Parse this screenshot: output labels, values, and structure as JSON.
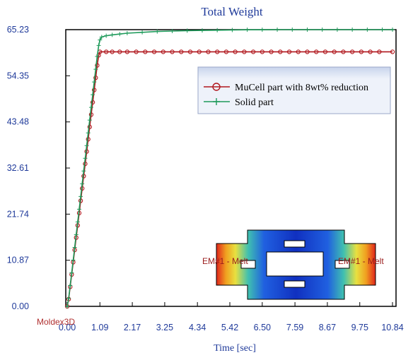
{
  "chart_data": {
    "type": "line",
    "title": "Total Weight",
    "xlabel": "Time [sec]",
    "ylabel": "",
    "x_ticks": [
      "0.00",
      "1.09",
      "2.17",
      "3.25",
      "4.34",
      "5.42",
      "6.50",
      "7.59",
      "8.67",
      "9.75",
      "10.84"
    ],
    "y_ticks": [
      "0.00",
      "10.87",
      "21.74",
      "32.61",
      "43.48",
      "54.35",
      "65.23"
    ],
    "xlim": [
      0,
      10.84
    ],
    "ylim": [
      0,
      65.23
    ],
    "legend_position": "upper-right",
    "series": [
      {
        "name": "MuCell part with 8wt% reduction",
        "color": "#b0161c",
        "marker": "circle",
        "x": [
          0,
          0.05,
          0.1,
          0.15,
          0.2,
          0.25,
          0.3,
          0.35,
          0.4,
          0.45,
          0.5,
          0.55,
          0.6,
          0.65,
          0.7,
          0.75,
          0.8,
          0.85,
          0.9,
          0.95,
          1.0,
          1.05,
          1.09,
          1.3,
          1.5,
          1.75,
          2.0,
          2.3,
          2.6,
          2.9,
          3.2,
          3.5,
          3.8,
          4.1,
          4.4,
          4.7,
          5.0,
          5.3,
          5.6,
          5.9,
          6.2,
          6.5,
          6.8,
          7.1,
          7.4,
          7.7,
          8.0,
          8.3,
          8.6,
          8.9,
          9.2,
          9.5,
          9.8,
          10.1,
          10.4,
          10.84
        ],
        "y": [
          0,
          1.7,
          4.6,
          7.5,
          10.4,
          13.3,
          16.2,
          19.1,
          22.0,
          24.9,
          27.8,
          30.7,
          33.6,
          36.5,
          39.4,
          42.3,
          45.2,
          48.1,
          51.0,
          53.9,
          56.8,
          59.2,
          60.0,
          60.0,
          60.0,
          60.0,
          60.0,
          60.0,
          60.0,
          60.0,
          60.0,
          60.0,
          60.0,
          60.0,
          60.0,
          60.0,
          60.0,
          60.0,
          60.0,
          60.0,
          60.0,
          60.0,
          60.0,
          60.0,
          60.0,
          60.0,
          60.0,
          60.0,
          60.0,
          60.0,
          60.0,
          60.0,
          60.0,
          60.0,
          60.0,
          60.0
        ]
      },
      {
        "name": "Solid part",
        "color": "#1e9a5a",
        "marker": "plus",
        "x": [
          0,
          0.05,
          0.1,
          0.15,
          0.2,
          0.25,
          0.3,
          0.35,
          0.4,
          0.45,
          0.5,
          0.55,
          0.6,
          0.65,
          0.7,
          0.75,
          0.8,
          0.85,
          0.9,
          0.95,
          1.0,
          1.05,
          1.09,
          1.15,
          1.3,
          1.5,
          1.75,
          2.0,
          2.5,
          3.0,
          3.5,
          4.0,
          4.5,
          5.0,
          5.5,
          6.0,
          6.5,
          7.0,
          7.5,
          8.0,
          8.5,
          9.0,
          9.5,
          10.0,
          10.5,
          10.84
        ],
        "y": [
          0,
          1.9,
          4.9,
          7.9,
          10.9,
          13.9,
          16.9,
          19.9,
          22.9,
          25.9,
          28.9,
          31.9,
          34.9,
          37.9,
          40.9,
          43.9,
          46.9,
          49.9,
          52.9,
          55.9,
          58.9,
          61.5,
          62.8,
          63.5,
          63.8,
          64.0,
          64.2,
          64.4,
          64.6,
          64.8,
          64.9,
          65.0,
          65.05,
          65.1,
          65.15,
          65.2,
          65.2,
          65.23,
          65.23,
          65.23,
          65.23,
          65.23,
          65.23,
          65.23,
          65.23,
          65.23
        ]
      }
    ],
    "inset": {
      "description_labels": [
        "EM#1 - Melt",
        "EM#1 - Melt"
      ]
    },
    "watermark": "Moldex3D"
  }
}
